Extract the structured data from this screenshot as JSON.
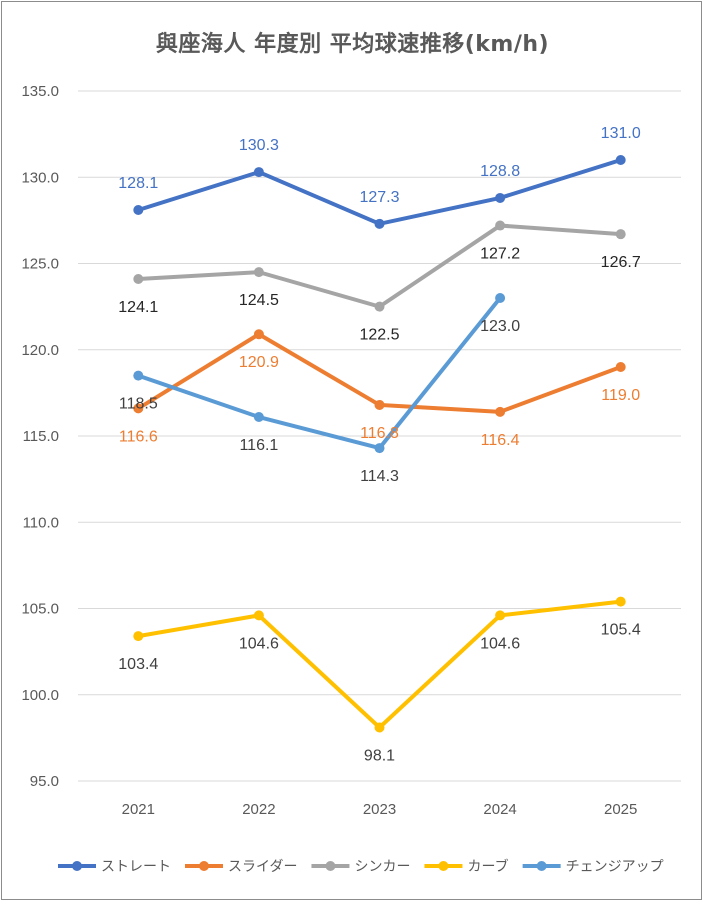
{
  "chart_data": {
    "type": "line",
    "title": "與座海人 年度別 平均球速推移(km/h)",
    "xlabel": "",
    "ylabel": "",
    "ylim": [
      95,
      135
    ],
    "yticks": [
      "95.0",
      "100.0",
      "105.0",
      "110.0",
      "115.0",
      "120.0",
      "125.0",
      "130.0",
      "135.0"
    ],
    "grid": true,
    "legend_position": "bottom",
    "categories": [
      "2021",
      "2022",
      "2023",
      "2024",
      "2025"
    ],
    "series": [
      {
        "name": "ストレート",
        "color": "#4472c4",
        "label_color": "#4472c4",
        "label_pos": "above",
        "values": [
          128.1,
          130.3,
          127.3,
          128.8,
          131.0
        ],
        "labels": [
          "128.1",
          "130.3",
          "127.3",
          "128.8",
          "131.0"
        ]
      },
      {
        "name": "スライダー",
        "color": "#ed7d31",
        "label_color": "#ed7d31",
        "label_pos": "below",
        "values": [
          116.6,
          120.9,
          116.8,
          116.4,
          119.0
        ],
        "labels": [
          "116.6",
          "120.9",
          "116.8",
          "116.4",
          "119.0"
        ]
      },
      {
        "name": "シンカー",
        "color": "#a5a5a5",
        "label_color": "#262626",
        "label_pos": "below",
        "values": [
          124.1,
          124.5,
          122.5,
          127.2,
          126.7
        ],
        "labels": [
          "124.1",
          "124.5",
          "122.5",
          "127.2",
          "126.7"
        ]
      },
      {
        "name": "カーブ",
        "color": "#ffc000",
        "label_color": "#404040",
        "label_pos": "below",
        "values": [
          103.4,
          104.6,
          98.1,
          104.6,
          105.4
        ],
        "labels": [
          "103.4",
          "104.6",
          "98.1",
          "104.6",
          "105.4"
        ]
      },
      {
        "name": "チェンジアップ",
        "color": "#5b9bd5",
        "label_color": "#404040",
        "label_pos": "below",
        "values": [
          118.5,
          116.1,
          114.3,
          123.0,
          null
        ],
        "labels": [
          "118.5",
          "116.1",
          "114.3",
          "123.0",
          null
        ]
      }
    ]
  }
}
